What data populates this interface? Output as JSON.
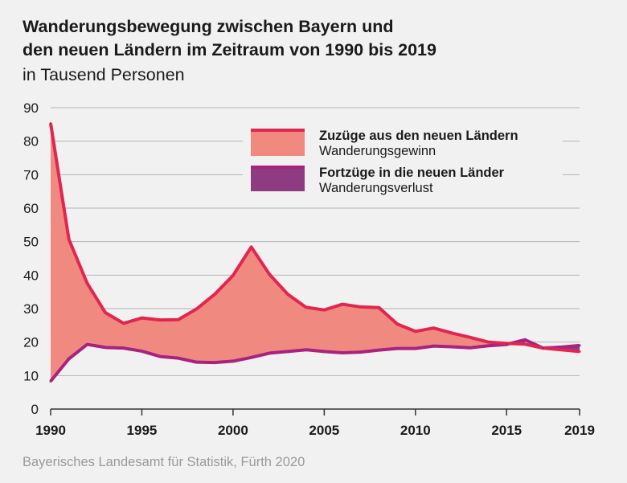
{
  "title_line1": "Wanderungsbewegung zwischen Bayern und",
  "title_line2": "den neuen Ländern im Zeitraum von 1990 bis 2019",
  "subtitle": "in Tausend Personen",
  "source": "Bayerisches Landesamt für Statistik, Fürth 2020",
  "colors": {
    "zuzuege_line": "#e1264f",
    "zuzuege_fill": "#f08a80",
    "fortzuege_line": "#a8237f",
    "fortzuege_fill": "#8e3b82",
    "grid": "#b4b4b4",
    "axis": "#333333",
    "background": "#f1f1f1"
  },
  "chart_data": {
    "type": "area",
    "title": "Wanderungsbewegung zwischen Bayern und den neuen Ländern im Zeitraum von 1990 bis 2019",
    "subtitle": "in Tausend Personen",
    "xlabel": "",
    "ylabel": "",
    "ylim": [
      0,
      90
    ],
    "yticks": [
      0,
      10,
      20,
      30,
      40,
      50,
      60,
      70,
      80,
      90
    ],
    "xlim": [
      1990,
      2019
    ],
    "xticks": [
      "1990",
      "1995",
      "2000",
      "2005",
      "2010",
      "2015",
      "2019"
    ],
    "grid": true,
    "legend_position": "top-right",
    "x": [
      1990,
      1991,
      1992,
      1993,
      1994,
      1995,
      1996,
      1997,
      1998,
      1999,
      2000,
      2001,
      2002,
      2003,
      2004,
      2005,
      2006,
      2007,
      2008,
      2009,
      2010,
      2011,
      2012,
      2013,
      2014,
      2015,
      2016,
      2017,
      2018,
      2019
    ],
    "series": [
      {
        "name": "Zuzüge aus den neuen Ländern",
        "sublabel": "Wanderungsgewinn",
        "values": [
          85.3,
          50.7,
          37.6,
          28.8,
          25.6,
          27.2,
          26.6,
          26.7,
          29.9,
          34.3,
          39.9,
          48.4,
          40.2,
          34.3,
          30.4,
          29.6,
          31.3,
          30.5,
          30.3,
          25.4,
          23.2,
          24.2,
          22.7,
          21.4,
          20.0,
          19.6,
          19.4,
          18.2,
          17.7,
          17.2
        ]
      },
      {
        "name": "Fortzüge in die neuen Länder",
        "sublabel": "Wanderungsverlust",
        "values": [
          8.3,
          15.0,
          19.3,
          18.4,
          18.2,
          17.3,
          15.7,
          15.2,
          14.0,
          13.9,
          14.3,
          15.4,
          16.7,
          17.2,
          17.7,
          17.2,
          16.8,
          17.0,
          17.6,
          18.1,
          18.1,
          18.8,
          18.6,
          18.3,
          18.9,
          19.3,
          20.7,
          18.2,
          18.5,
          19.0
        ]
      }
    ]
  }
}
